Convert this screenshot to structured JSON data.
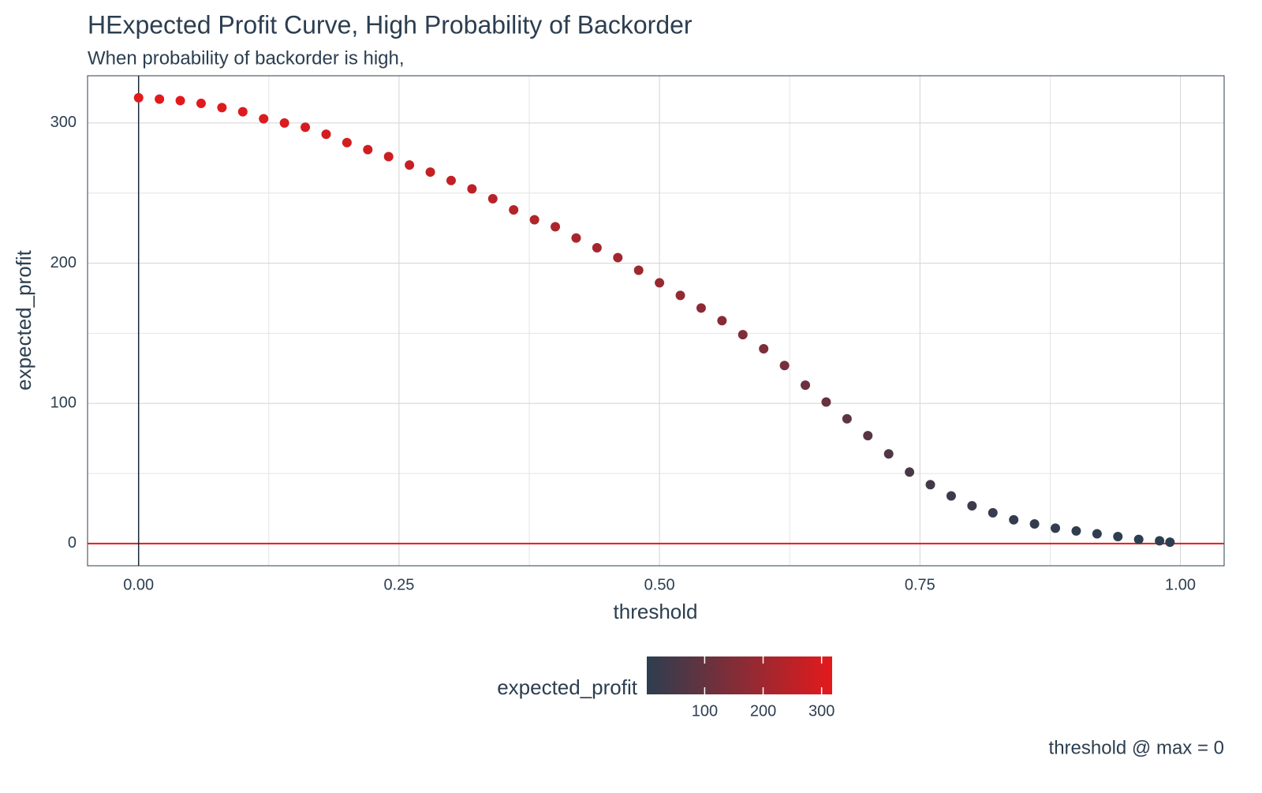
{
  "chart_data": {
    "type": "scatter",
    "title": "HExpected Profit Curve, High Probability of Backorder",
    "subtitle": "When probability of backorder is high,",
    "x_label": "threshold",
    "y_label": "expected_profit",
    "caption": "threshold @ max = 0",
    "x": [
      0.0,
      0.02,
      0.04,
      0.06,
      0.08,
      0.1,
      0.12,
      0.14,
      0.16,
      0.18,
      0.2,
      0.22,
      0.24,
      0.26,
      0.28,
      0.3,
      0.32,
      0.34,
      0.36,
      0.38,
      0.4,
      0.42,
      0.44,
      0.46,
      0.48,
      0.5,
      0.52,
      0.54,
      0.56,
      0.58,
      0.6,
      0.62,
      0.64,
      0.66,
      0.68,
      0.7,
      0.72,
      0.74,
      0.76,
      0.78,
      0.8,
      0.82,
      0.84,
      0.86,
      0.88,
      0.9,
      0.92,
      0.94,
      0.96,
      0.98,
      0.99
    ],
    "values": [
      318,
      317,
      316,
      314,
      311,
      308,
      303,
      300,
      297,
      292,
      286,
      281,
      276,
      270,
      265,
      259,
      253,
      246,
      238,
      231,
      226,
      218,
      211,
      204,
      195,
      186,
      177,
      168,
      159,
      149,
      139,
      127,
      113,
      101,
      89,
      77,
      64,
      51,
      42,
      34,
      27,
      22,
      17,
      14,
      11,
      9,
      7,
      5,
      3,
      2,
      1
    ],
    "xlim": [
      -0.049,
      1.042
    ],
    "ylim": [
      -15.8,
      333.7
    ],
    "xticks": [
      {
        "value": 0,
        "label": "0.00"
      },
      {
        "value": 0.25,
        "label": "0.25"
      },
      {
        "value": 0.5,
        "label": "0.50"
      },
      {
        "value": 0.75,
        "label": "0.75"
      },
      {
        "value": 1,
        "label": "1.00"
      }
    ],
    "yticks": [
      0,
      100,
      200,
      300
    ],
    "grid": true,
    "hline": 0,
    "hline_color": "#e31a1c",
    "vline": 0,
    "vline_color": "#1b2838",
    "color_scale": {
      "title": "expected_profit",
      "low": "#2c3e50",
      "high": "#e31a1c",
      "ticks": [
        100,
        200,
        300
      ]
    },
    "legend": "bottom"
  }
}
